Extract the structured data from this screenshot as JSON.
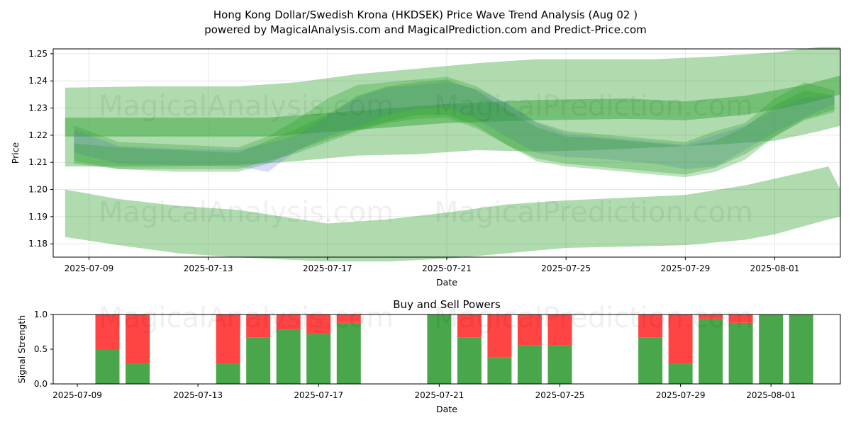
{
  "header": {
    "title": "Hong Kong Dollar/Swedish Krona (HKDSEK) Price Wave Trend Analysis (Aug 02 )",
    "subtitle": "powered by MagicalAnalysis.com and MagicalPrediction.com and Predict-Price.com"
  },
  "watermarks": {
    "left": "MagicalAnalysis.com",
    "right": "MagicalPrediction.com"
  },
  "colors": {
    "green_band": "#2ca02c",
    "blue_band": "#6b6bff",
    "buy": "#4aa64a",
    "sell": "#ff4444",
    "grid": "#e6e6e6"
  },
  "chart_data": [
    {
      "type": "area",
      "title": "",
      "xlabel": "Date",
      "ylabel": "Price",
      "x_ticks": [
        "2025-07-09",
        "2025-07-13",
        "2025-07-17",
        "2025-07-21",
        "2025-07-25",
        "2025-07-29",
        "2025-08-01"
      ],
      "x_tick_days": [
        9,
        13,
        17,
        21,
        25,
        29,
        32
      ],
      "xlim_days": [
        7.8,
        34.2
      ],
      "y_ticks": [
        "1.18",
        "1.19",
        "1.20",
        "1.21",
        "1.22",
        "1.23",
        "1.24",
        "1.25"
      ],
      "ylim": [
        1.1751,
        1.2518
      ],
      "grid": true,
      "series": [
        {
          "name": "upper wide band",
          "color": "green",
          "opacity": 0.38,
          "x": [
            8.2,
            11,
            14,
            16,
            18,
            20,
            22,
            24,
            26,
            28,
            30,
            32,
            33.5,
            34.2
          ],
          "upper": [
            1.2375,
            1.238,
            1.238,
            1.2395,
            1.2425,
            1.2445,
            1.2465,
            1.248,
            1.248,
            1.248,
            1.249,
            1.2505,
            1.2525,
            1.2525
          ],
          "lower": [
            1.2085,
            1.2085,
            1.209,
            1.2105,
            1.2125,
            1.213,
            1.2145,
            1.214,
            1.2145,
            1.2155,
            1.2165,
            1.218,
            1.2215,
            1.2235
          ]
        },
        {
          "name": "lower wide band",
          "color": "green",
          "opacity": 0.38,
          "x": [
            8.2,
            10,
            12,
            14,
            17,
            19,
            21,
            23,
            25,
            27,
            29,
            31,
            32,
            33.8,
            34.2
          ],
          "upper": [
            1.2,
            1.1965,
            1.194,
            1.1925,
            1.1875,
            1.189,
            1.1915,
            1.1945,
            1.196,
            1.197,
            1.198,
            1.2015,
            1.204,
            1.2085,
            1.2
          ],
          "lower": [
            1.1825,
            1.1795,
            1.1765,
            1.175,
            1.1735,
            1.1735,
            1.1745,
            1.1765,
            1.1785,
            1.179,
            1.1795,
            1.1815,
            1.1835,
            1.189,
            1.19
          ]
        },
        {
          "name": "trend band",
          "color": "green",
          "opacity": 0.45,
          "x": [
            8.2,
            12,
            15,
            18,
            21,
            24,
            27,
            29,
            31,
            33,
            34.2
          ],
          "upper": [
            1.2265,
            1.2265,
            1.2265,
            1.229,
            1.2315,
            1.233,
            1.2335,
            1.2325,
            1.2345,
            1.2385,
            1.242
          ],
          "lower": [
            1.2195,
            1.2195,
            1.2195,
            1.222,
            1.2245,
            1.2255,
            1.226,
            1.2255,
            1.2275,
            1.2315,
            1.235
          ]
        },
        {
          "name": "blue wave",
          "color": "blue",
          "opacity": 0.25,
          "x": [
            8.5,
            10,
            12,
            14,
            15,
            16,
            17,
            18,
            19,
            20,
            21,
            22,
            23,
            24,
            25,
            26,
            27,
            28,
            29,
            30,
            31,
            32,
            33,
            34
          ],
          "upper": [
            1.222,
            1.216,
            1.215,
            1.2145,
            1.217,
            1.22,
            1.227,
            1.234,
            1.2375,
            1.2385,
            1.2395,
            1.237,
            1.232,
            1.2245,
            1.2205,
            1.2195,
            1.2185,
            1.2175,
            1.2165,
            1.22,
            1.2235,
            1.2295,
            1.234,
            1.2345
          ],
          "lower": [
            1.2135,
            1.2095,
            1.209,
            1.2085,
            1.2065,
            1.2145,
            1.2195,
            1.223,
            1.2275,
            1.2295,
            1.2305,
            1.226,
            1.2195,
            1.2135,
            1.212,
            1.2115,
            1.2105,
            1.2095,
            1.2075,
            1.2085,
            1.2145,
            1.221,
            1.2265,
            1.2315
          ]
        },
        {
          "name": "green wave 1",
          "color": "green",
          "opacity": 0.3,
          "x": [
            8.5,
            10,
            12,
            14,
            15,
            16,
            17,
            18,
            19,
            20,
            21,
            22,
            23,
            24,
            25,
            26,
            27,
            28,
            29,
            30,
            31,
            32,
            33,
            34
          ],
          "upper": [
            1.2235,
            1.2175,
            1.2165,
            1.2155,
            1.2195,
            1.226,
            1.2335,
            1.2385,
            1.2395,
            1.2405,
            1.2415,
            1.238,
            1.2315,
            1.225,
            1.2215,
            1.2205,
            1.2195,
            1.2185,
            1.2175,
            1.2215,
            1.2245,
            1.2335,
            1.2395,
            1.2365
          ],
          "lower": [
            1.2105,
            1.2075,
            1.2065,
            1.2065,
            1.2095,
            1.2145,
            1.2185,
            1.222,
            1.225,
            1.2275,
            1.2275,
            1.2235,
            1.2165,
            1.2105,
            1.2085,
            1.2075,
            1.2065,
            1.2055,
            1.2045,
            1.2065,
            1.211,
            1.2195,
            1.226,
            1.2295
          ]
        },
        {
          "name": "green wave 2",
          "color": "green",
          "opacity": 0.3,
          "x": [
            8.5,
            10,
            12,
            14,
            15,
            16,
            17,
            18,
            19,
            20,
            21,
            22,
            23,
            24,
            25,
            26,
            27,
            28,
            29,
            30,
            31,
            32,
            33,
            34
          ],
          "upper": [
            1.217,
            1.2155,
            1.2145,
            1.2135,
            1.218,
            1.2225,
            1.2275,
            1.2345,
            1.238,
            1.2395,
            1.2405,
            1.2365,
            1.2295,
            1.223,
            1.2195,
            1.219,
            1.218,
            1.217,
            1.216,
            1.218,
            1.223,
            1.231,
            1.2365,
            1.2345
          ],
          "lower": [
            1.2095,
            1.2075,
            1.2075,
            1.2075,
            1.2105,
            1.2135,
            1.2175,
            1.2215,
            1.2245,
            1.226,
            1.2265,
            1.2225,
            1.2165,
            1.2115,
            1.2095,
            1.2085,
            1.2075,
            1.2065,
            1.2055,
            1.208,
            1.213,
            1.2195,
            1.2255,
            1.2285
          ]
        }
      ]
    },
    {
      "type": "bar",
      "title": "Buy and Sell Powers",
      "xlabel": "Date",
      "ylabel": "Signal Strength",
      "x_ticks": [
        "2025-07-09",
        "2025-07-13",
        "2025-07-17",
        "2025-07-21",
        "2025-07-25",
        "2025-07-29",
        "2025-08-01"
      ],
      "x_tick_days": [
        9,
        13,
        17,
        21,
        25,
        29,
        32
      ],
      "xlim_days": [
        8.2,
        34.3
      ],
      "y_ticks": [
        "0.0",
        "0.5",
        "1.0"
      ],
      "ylim": [
        0,
        1
      ],
      "days": [
        10,
        11,
        14,
        15,
        16,
        17,
        18,
        21,
        22,
        23,
        24,
        25,
        28,
        29,
        30,
        31,
        32,
        33
      ],
      "categories": [
        "2025-07-10",
        "2025-07-11",
        "2025-07-14",
        "2025-07-15",
        "2025-07-16",
        "2025-07-17",
        "2025-07-18",
        "2025-07-21",
        "2025-07-22",
        "2025-07-23",
        "2025-07-24",
        "2025-07-25",
        "2025-07-28",
        "2025-07-29",
        "2025-07-30",
        "2025-07-31",
        "2025-08-01",
        "2025-08-02"
      ],
      "series": [
        {
          "name": "Buy",
          "values": [
            0.5,
            0.29,
            0.29,
            0.67,
            0.78,
            0.72,
            0.88,
            1.0,
            0.67,
            0.38,
            0.56,
            0.56,
            0.67,
            0.29,
            0.94,
            0.88,
            1.0,
            1.0
          ]
        },
        {
          "name": "Sell",
          "values": [
            0.5,
            0.71,
            0.71,
            0.33,
            0.22,
            0.28,
            0.12,
            0.0,
            0.33,
            0.62,
            0.44,
            0.44,
            0.33,
            0.71,
            0.06,
            0.12,
            0.0,
            0.0
          ]
        }
      ]
    }
  ]
}
